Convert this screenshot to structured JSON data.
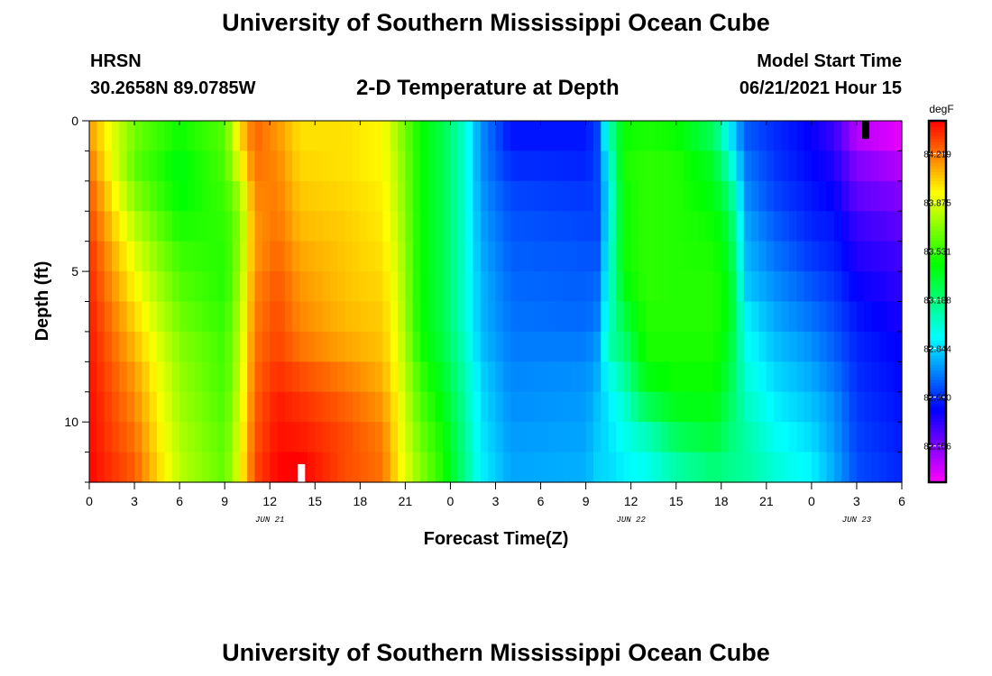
{
  "page": {
    "title": "University of Southern Mississippi Ocean Cube",
    "footer_title": "University of Southern Mississippi Ocean Cube",
    "station": "HRSN",
    "coordinates": "30.2658N  89.0785W",
    "plot_title": "2-D Temperature at Depth",
    "model_start_label": "Model Start Time",
    "model_start_value": "06/21/2021 Hour 15"
  },
  "chart_data": {
    "type": "heatmap",
    "title": "2-D Temperature at Depth",
    "xlabel": "Forecast Time(Z)",
    "ylabel": "Depth (ft)",
    "x_unit": "hours since 06/21/2021 00Z",
    "xlim": [
      0,
      54
    ],
    "ylim": [
      12,
      0
    ],
    "x_ticks": [
      {
        "value": 0,
        "label": "0"
      },
      {
        "value": 3,
        "label": "3"
      },
      {
        "value": 6,
        "label": "6"
      },
      {
        "value": 9,
        "label": "9"
      },
      {
        "value": 12,
        "label": "12"
      },
      {
        "value": 15,
        "label": "15"
      },
      {
        "value": 18,
        "label": "18"
      },
      {
        "value": 21,
        "label": "21"
      },
      {
        "value": 24,
        "label": "0"
      },
      {
        "value": 27,
        "label": "3"
      },
      {
        "value": 30,
        "label": "6"
      },
      {
        "value": 33,
        "label": "9"
      },
      {
        "value": 36,
        "label": "12"
      },
      {
        "value": 39,
        "label": "15"
      },
      {
        "value": 42,
        "label": "18"
      },
      {
        "value": 45,
        "label": "21"
      },
      {
        "value": 48,
        "label": "0"
      },
      {
        "value": 51,
        "label": "3"
      },
      {
        "value": 54,
        "label": "6"
      }
    ],
    "date_labels": [
      {
        "value": 12,
        "label": "JUN 21"
      },
      {
        "value": 36,
        "label": "JUN 22"
      },
      {
        "value": 51,
        "label": "JUN 23"
      }
    ],
    "y_ticks": [
      {
        "value": 0,
        "label": "0"
      },
      {
        "value": 5,
        "label": "5"
      },
      {
        "value": 10,
        "label": "10"
      }
    ],
    "colorbar": {
      "unit": "degF",
      "min": 81.9,
      "max": 84.45,
      "labels": [
        "84.219",
        "83.875",
        "83.531",
        "83.188",
        "82.844",
        "82.500",
        "82.156"
      ]
    },
    "depths_ft": [
      0.5,
      1.5,
      2.5,
      3.5,
      4.5,
      5.5,
      6.5,
      7.5,
      8.5,
      9.5,
      10.5,
      11.5
    ],
    "time_keys": [
      {
        "t": 0,
        "s": [
          84.15,
          84.22,
          84.28,
          84.32,
          84.36,
          84.38,
          84.4,
          84.41,
          84.42,
          84.43,
          84.43,
          84.44
        ]
      },
      {
        "t": 3,
        "s": [
          83.65,
          83.62,
          83.7,
          83.8,
          83.88,
          83.95,
          84.02,
          84.08,
          84.14,
          84.18,
          84.22,
          84.26
        ]
      },
      {
        "t": 6,
        "s": [
          83.45,
          83.4,
          83.42,
          83.48,
          83.55,
          83.6,
          83.65,
          83.7,
          83.73,
          83.75,
          83.78,
          83.8
        ]
      },
      {
        "t": 9,
        "s": [
          83.6,
          83.58,
          83.55,
          83.52,
          83.5,
          83.5,
          83.52,
          83.55,
          83.56,
          83.58,
          83.6,
          83.62
        ]
      },
      {
        "t": 10,
        "s": [
          84.0,
          83.9,
          83.75,
          83.7,
          83.72,
          83.75,
          83.78,
          83.8,
          83.82,
          83.85,
          83.88,
          83.9
        ]
      },
      {
        "t": 11,
        "s": [
          84.25,
          84.22,
          84.18,
          84.15,
          84.15,
          84.18,
          84.2,
          84.22,
          84.24,
          84.26,
          84.28,
          84.3
        ]
      },
      {
        "t": 12.5,
        "s": [
          84.15,
          84.18,
          84.2,
          84.22,
          84.25,
          84.28,
          84.3,
          84.32,
          84.36,
          84.4,
          84.42,
          84.44
        ]
      },
      {
        "t": 14,
        "s": [
          84.0,
          84.02,
          84.05,
          84.08,
          84.12,
          84.15,
          84.18,
          84.22,
          84.3,
          84.36,
          84.4,
          84.45
        ]
      },
      {
        "t": 17,
        "s": [
          84.0,
          84.0,
          84.02,
          84.04,
          84.05,
          84.06,
          84.08,
          84.12,
          84.2,
          84.26,
          84.3,
          84.3
        ]
      },
      {
        "t": 19.5,
        "s": [
          83.95,
          83.95,
          83.97,
          83.98,
          84.0,
          84.02,
          84.04,
          84.06,
          84.1,
          84.15,
          84.2,
          84.22
        ]
      },
      {
        "t": 20.5,
        "s": [
          83.75,
          83.78,
          83.8,
          83.82,
          83.84,
          83.86,
          83.88,
          83.9,
          83.92,
          83.95,
          83.96,
          83.98
        ]
      },
      {
        "t": 22,
        "s": [
          83.45,
          83.45,
          83.45,
          83.45,
          83.45,
          83.45,
          83.45,
          83.48,
          83.55,
          83.6,
          83.65,
          83.7
        ]
      },
      {
        "t": 23.5,
        "s": [
          83.28,
          83.28,
          83.28,
          83.28,
          83.28,
          83.28,
          83.28,
          83.3,
          83.35,
          83.4,
          83.45,
          83.48
        ]
      },
      {
        "t": 24.8,
        "s": [
          83.05,
          83.05,
          83.05,
          83.05,
          83.05,
          83.05,
          83.05,
          83.08,
          83.12,
          83.15,
          83.18,
          83.2
        ]
      },
      {
        "t": 26,
        "s": [
          82.7,
          82.7,
          82.72,
          82.74,
          82.76,
          82.78,
          82.78,
          82.8,
          82.84,
          82.86,
          82.88,
          82.9
        ]
      },
      {
        "t": 28,
        "s": [
          82.45,
          82.5,
          82.55,
          82.58,
          82.6,
          82.62,
          82.64,
          82.66,
          82.68,
          82.7,
          82.72,
          82.74
        ]
      },
      {
        "t": 33,
        "s": [
          82.45,
          82.48,
          82.52,
          82.55,
          82.58,
          82.6,
          82.62,
          82.66,
          82.7,
          82.72,
          82.74,
          82.76
        ]
      },
      {
        "t": 33.8,
        "s": [
          82.55,
          82.55,
          82.55,
          82.55,
          82.58,
          82.62,
          82.66,
          82.72,
          82.76,
          82.8,
          82.82,
          82.84
        ]
      },
      {
        "t": 34.5,
        "s": [
          83.05,
          82.95,
          82.9,
          82.92,
          82.95,
          82.98,
          83.02,
          83.08,
          82.95,
          82.88,
          82.86,
          82.85
        ]
      },
      {
        "t": 35.5,
        "s": [
          83.45,
          83.48,
          83.45,
          83.45,
          83.45,
          83.4,
          83.3,
          83.2,
          83.1,
          83.0,
          82.95,
          82.9
        ]
      },
      {
        "t": 37,
        "s": [
          83.48,
          83.52,
          83.52,
          83.52,
          83.52,
          83.52,
          83.5,
          83.48,
          83.4,
          83.25,
          83.05,
          82.95
        ]
      },
      {
        "t": 39,
        "s": [
          83.45,
          83.5,
          83.5,
          83.5,
          83.5,
          83.5,
          83.5,
          83.48,
          83.45,
          83.38,
          83.25,
          83.1
        ]
      },
      {
        "t": 41.5,
        "s": [
          83.25,
          83.35,
          83.4,
          83.45,
          83.48,
          83.5,
          83.5,
          83.48,
          83.45,
          83.4,
          83.32,
          83.2
        ]
      },
      {
        "t": 42.6,
        "s": [
          82.9,
          83.05,
          83.2,
          83.3,
          83.35,
          83.4,
          83.4,
          83.35,
          83.3,
          83.25,
          83.2,
          83.15
        ]
      },
      {
        "t": 43.6,
        "s": [
          82.6,
          82.65,
          82.7,
          82.75,
          82.78,
          82.82,
          82.9,
          82.95,
          83.0,
          83.05,
          83.1,
          83.12
        ]
      },
      {
        "t": 45.5,
        "s": [
          82.5,
          82.52,
          82.55,
          82.6,
          82.65,
          82.7,
          82.75,
          82.8,
          82.85,
          82.9,
          82.95,
          83.0
        ]
      },
      {
        "t": 48,
        "s": [
          82.4,
          82.42,
          82.45,
          82.48,
          82.52,
          82.58,
          82.64,
          82.7,
          82.75,
          82.8,
          82.85,
          82.9
        ]
      },
      {
        "t": 49.5,
        "s": [
          82.3,
          82.35,
          82.4,
          82.45,
          82.48,
          82.52,
          82.56,
          82.6,
          82.65,
          82.7,
          82.72,
          82.75
        ]
      },
      {
        "t": 51,
        "s": [
          82.05,
          82.15,
          82.22,
          82.3,
          82.35,
          82.4,
          82.45,
          82.48,
          82.5,
          82.52,
          82.54,
          82.56
        ]
      },
      {
        "t": 54,
        "s": [
          81.95,
          82.05,
          82.15,
          82.22,
          82.28,
          82.32,
          82.36,
          82.4,
          82.42,
          82.44,
          82.46,
          82.48
        ]
      }
    ],
    "markers": [
      {
        "t": 14.1,
        "depth_from": 11.4,
        "depth_to": 12.0,
        "color": "#ffffff"
      },
      {
        "t": 51.6,
        "depth_from": 0.0,
        "depth_to": 0.6,
        "color": "#000000"
      }
    ],
    "grid": false
  }
}
